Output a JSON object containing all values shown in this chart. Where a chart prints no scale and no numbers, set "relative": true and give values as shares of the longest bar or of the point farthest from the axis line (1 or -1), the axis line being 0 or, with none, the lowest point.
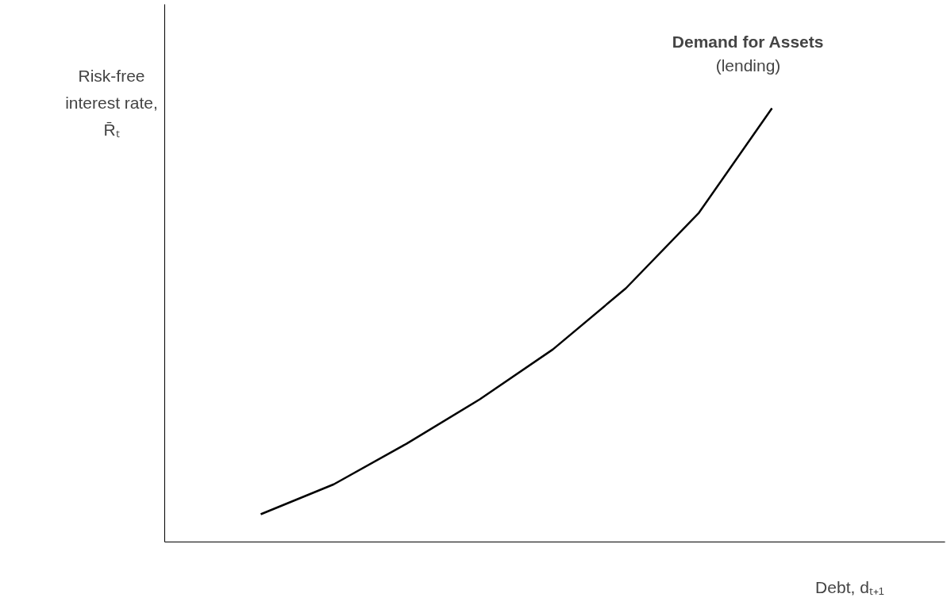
{
  "chart_data": {
    "type": "line",
    "relative": true,
    "xlabel": "Debt, dₜ₊₁",
    "ylabel": "Risk-free interest rate, R̄ₜ",
    "categories": [
      null,
      null,
      null,
      null,
      null,
      null,
      null,
      null
    ],
    "series": [
      {
        "name": "Demand for Assets",
        "color": "#000000",
        "values": [
          0.064,
          0.133,
          0.227,
          0.329,
          0.444,
          0.585,
          0.759,
          1
        ]
      }
    ],
    "annotations": [
      "(lending)"
    ],
    "marker": "none",
    "line_style": "solid"
  }
}
